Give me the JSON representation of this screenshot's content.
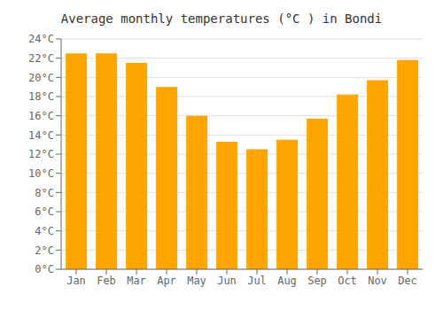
{
  "chart_data": {
    "type": "bar",
    "title": "Average monthly temperatures (°C ) in Bondi",
    "categories": [
      "Jan",
      "Feb",
      "Mar",
      "Apr",
      "May",
      "Jun",
      "Jul",
      "Aug",
      "Sep",
      "Oct",
      "Nov",
      "Dec"
    ],
    "values": [
      22.5,
      22.5,
      21.5,
      19.0,
      16.0,
      13.3,
      12.5,
      13.5,
      15.7,
      18.2,
      19.7,
      21.8
    ],
    "color": "#FFA500",
    "ylim": [
      0,
      24
    ],
    "yticks": [
      {
        "value": 0,
        "label": "0°C"
      },
      {
        "value": 2,
        "label": "2°C"
      },
      {
        "value": 4,
        "label": "4°C"
      },
      {
        "value": 6,
        "label": "6°C"
      },
      {
        "value": 8,
        "label": "8°C"
      },
      {
        "value": 10,
        "label": "10°C"
      },
      {
        "value": 12,
        "label": "12°C"
      },
      {
        "value": 14,
        "label": "14°C"
      },
      {
        "value": 16,
        "label": "16°C"
      },
      {
        "value": 18,
        "label": "18°C"
      },
      {
        "value": 20,
        "label": "20°C"
      },
      {
        "value": 22,
        "label": "22°C"
      },
      {
        "value": 24,
        "label": "24°C"
      }
    ],
    "grid": true
  }
}
